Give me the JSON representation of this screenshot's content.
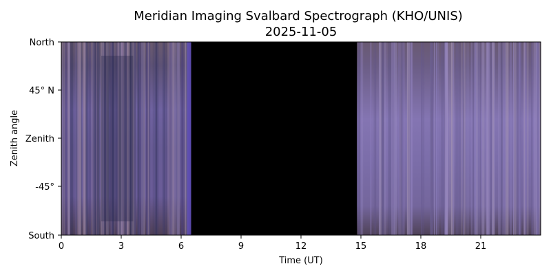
{
  "chart_data": {
    "type": "heatmap",
    "title": "Meridian Imaging Svalbard Spectrograph (KHO/UNIS)",
    "subtitle": "2025-11-05",
    "xlabel": "Time (UT)",
    "ylabel": "Zenith angle",
    "xlim": [
      0,
      24
    ],
    "x_ticks": [
      0,
      3,
      6,
      9,
      12,
      15,
      18,
      21
    ],
    "x_tick_labels": [
      "0",
      "3",
      "6",
      "9",
      "12",
      "15",
      "18",
      "21"
    ],
    "y_tick_labels": [
      "North",
      "45° N",
      "Zenith",
      "-45°",
      "South"
    ],
    "data_gap_hours": [
      6.5,
      14.8
    ],
    "segments": [
      {
        "start_hour": 0,
        "end_hour": 6.5,
        "dominant_color": "#6f6296"
      },
      {
        "start_hour": 14.8,
        "end_hour": 24,
        "dominant_color": "#7e6ea6"
      }
    ],
    "gap_color": "#000000",
    "grid": false
  }
}
